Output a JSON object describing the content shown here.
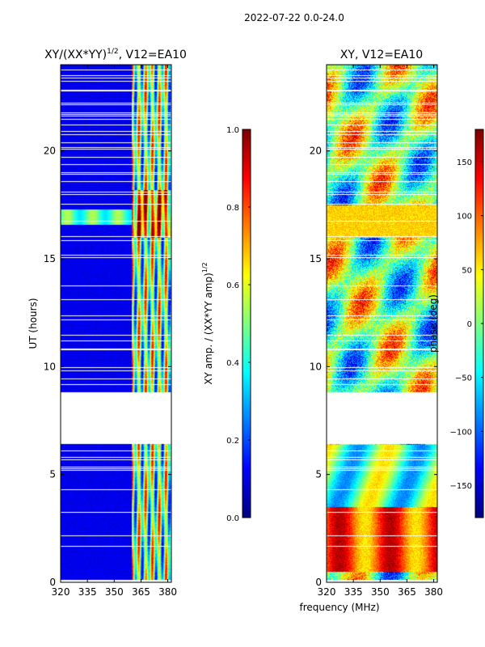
{
  "figure": {
    "suptitle": "2022-07-22 0.0-24.0",
    "xlabel": "frequency (MHz)"
  },
  "colors": {
    "jet": [
      "#00007f",
      "#0000ff",
      "#007fff",
      "#00ffff",
      "#7fff7f",
      "#ffff00",
      "#ff7f00",
      "#ff0000",
      "#7f0000"
    ],
    "gap": "#ffffff",
    "axis": "#000000"
  },
  "chart_data": [
    {
      "type": "heatmap",
      "title_main": "XY/(XX*YY)",
      "title_sup": "1/2",
      "title_rest": ", V12=EA10",
      "xlabel": "frequency (MHz)",
      "ylabel": "UT (hours)",
      "xlim": [
        320,
        382
      ],
      "ylim": [
        0,
        24
      ],
      "xticks": [
        320,
        335,
        350,
        365,
        380
      ],
      "yticks": [
        0,
        5,
        10,
        15,
        20
      ],
      "xtick_labels": [
        "320",
        "335",
        "350",
        "365",
        "380"
      ],
      "ytick_labels": [
        "0",
        "5",
        "10",
        "15",
        "20"
      ],
      "colorbar": {
        "label_main": "XY amp. / (XX*YY amp)",
        "label_sup": "1/2",
        "range": [
          0.0,
          1.0
        ],
        "ticks": [
          0.0,
          0.2,
          0.4,
          0.6,
          0.8,
          1.0
        ],
        "tick_labels": [
          "0.0",
          "0.2",
          "0.4",
          "0.6",
          "0.8",
          "1.0"
        ]
      },
      "gap_hours": [
        [
          6.4,
          8.8
        ],
        [
          0.0,
          0.15
        ]
      ],
      "flag_start_mhz": 360,
      "low_band_level": 0.08,
      "high_band_level": 0.45,
      "bright_rows_hours": [
        [
          16.6,
          17.3
        ]
      ]
    },
    {
      "type": "heatmap",
      "title": "XY, V12=EA10",
      "xlabel": "frequency (MHz)",
      "ylabel": "",
      "xlim": [
        320,
        382
      ],
      "ylim": [
        0,
        24
      ],
      "xticks": [
        320,
        335,
        350,
        365,
        380
      ],
      "yticks": [
        0,
        5,
        10,
        15,
        20
      ],
      "xtick_labels": [
        "320",
        "335",
        "350",
        "365",
        "380"
      ],
      "ytick_labels": [
        "0",
        "5",
        "10",
        "15",
        "20"
      ],
      "colorbar": {
        "label": "phase (deg)",
        "range": [
          -180,
          180
        ],
        "ticks": [
          -150,
          -100,
          -50,
          0,
          50,
          100,
          150
        ],
        "tick_labels": [
          "−150",
          "−100",
          "−50",
          "0",
          "50",
          "100",
          "150"
        ]
      },
      "gap_hours": [
        [
          6.4,
          8.8
        ],
        [
          0.0,
          0.15
        ]
      ]
    }
  ]
}
